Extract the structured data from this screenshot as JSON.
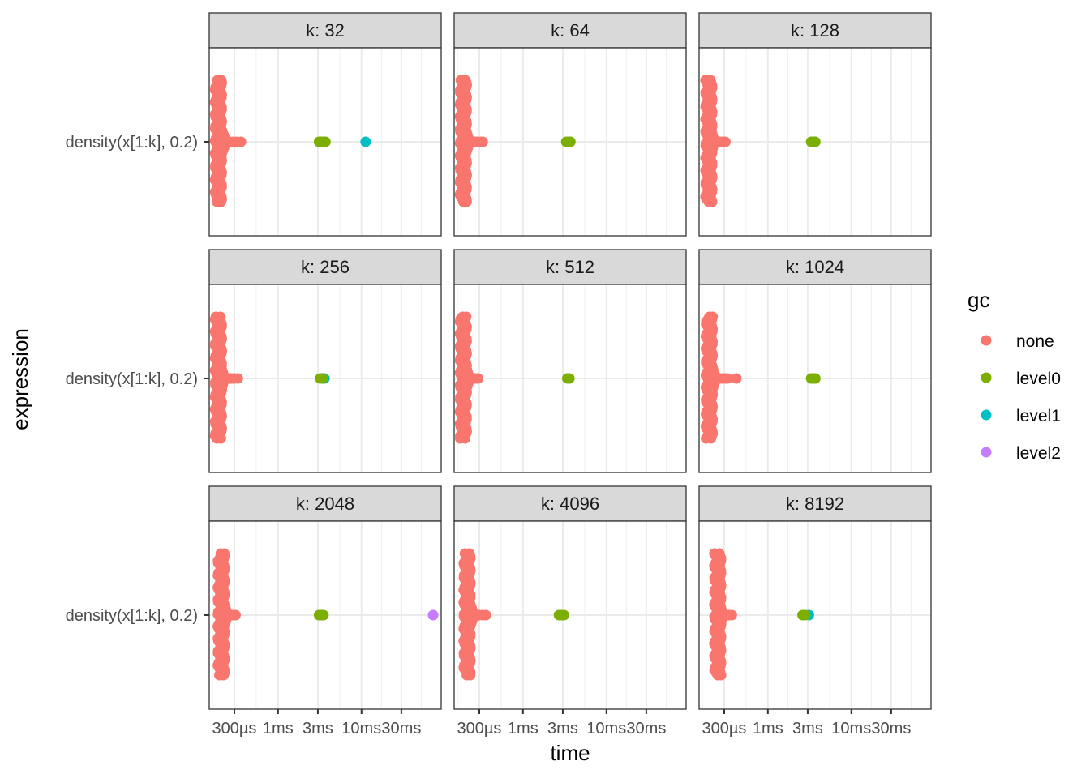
{
  "chart_data": {
    "type": "scatter",
    "subtype": "beeswarm-faceted",
    "xlabel": "time",
    "ylabel": "expression",
    "x_scale": "log10",
    "x_unit": "seconds",
    "xlim": [
      0.00015,
      0.09
    ],
    "x_ticks": [
      {
        "value": 0.0003,
        "label": "300µs"
      },
      {
        "value": 0.001,
        "label": "1ms"
      },
      {
        "value": 0.003,
        "label": "3ms"
      },
      {
        "value": 0.01,
        "label": "10ms"
      },
      {
        "value": 0.03,
        "label": "30ms"
      }
    ],
    "y_categories": [
      "density(x[1:k], 0.2)"
    ],
    "grid": true,
    "legend": {
      "title": "gc",
      "position": "right",
      "entries": [
        {
          "name": "none",
          "color": "#F8766D"
        },
        {
          "name": "level0",
          "color": "#7CAE00"
        },
        {
          "name": "level1",
          "color": "#00BFC4"
        },
        {
          "name": "level2",
          "color": "#C77CFF"
        }
      ]
    },
    "facets": [
      {
        "label": "k: 32",
        "none": {
          "core": 0.000185,
          "core_spread": 1.0,
          "shoulder": 0.00024,
          "tail": [
            0.00026,
            0.00029,
            0.00032,
            0.00036
          ]
        },
        "gc_points": [
          {
            "gc": "level0",
            "values": [
              0.0031,
              0.0033,
              0.0035,
              0.0037
            ]
          },
          {
            "gc": "level1",
            "values": [
              0.0112
            ]
          }
        ]
      },
      {
        "label": "k: 64",
        "none": {
          "core": 0.000185,
          "core_spread": 1.0,
          "shoulder": 0.00023,
          "tail": [
            0.00026,
            0.00028,
            0.00031,
            0.00033
          ]
        },
        "gc_points": [
          {
            "gc": "level0",
            "values": [
              0.0033,
              0.0035,
              0.0037
            ]
          }
        ]
      },
      {
        "label": "k: 128",
        "none": {
          "core": 0.000188,
          "core_spread": 1.0,
          "shoulder": 0.00023,
          "tail": [
            0.00025,
            0.00027,
            0.00029,
            0.00031
          ]
        },
        "gc_points": [
          {
            "gc": "level0",
            "values": [
              0.0033,
              0.0035,
              0.0037
            ]
          }
        ]
      },
      {
        "label": "k: 256",
        "none": {
          "core": 0.000185,
          "core_spread": 1.0,
          "shoulder": 0.00023,
          "tail": [
            0.00026,
            0.00028,
            0.0003,
            0.00033
          ]
        },
        "gc_points": [
          {
            "gc": "level1",
            "values": [
              0.0036
            ]
          },
          {
            "gc": "level0",
            "values": [
              0.0032,
              0.0034
            ]
          }
        ]
      },
      {
        "label": "k: 512",
        "none": {
          "core": 0.000185,
          "core_spread": 1.0,
          "shoulder": 0.00023,
          "tail": [
            0.00025,
            0.00027,
            0.00029
          ]
        },
        "gc_points": [
          {
            "gc": "level0",
            "values": [
              0.0034,
              0.0036
            ]
          }
        ]
      },
      {
        "label": "k: 1024",
        "none": {
          "core": 0.00019,
          "core_spread": 1.0,
          "shoulder": 0.00024,
          "tail": [
            0.00027,
            0.00029,
            0.00031,
            0.00033,
            0.00042
          ]
        },
        "gc_points": [
          {
            "gc": "level0",
            "values": [
              0.0033,
              0.0035,
              0.0037
            ]
          }
        ]
      },
      {
        "label": "k: 2048",
        "none": {
          "core": 0.0002,
          "core_spread": 1.0,
          "shoulder": 0.00025,
          "tail": [
            0.00027,
            0.00029,
            0.00031
          ]
        },
        "gc_points": [
          {
            "gc": "level1",
            "values": [
              0.0034
            ]
          },
          {
            "gc": "level0",
            "values": [
              0.0031,
              0.0033,
              0.0035
            ]
          },
          {
            "gc": "level2",
            "values": [
              0.072
            ]
          }
        ]
      },
      {
        "label": "k: 4096",
        "none": {
          "core": 0.000205,
          "core_spread": 1.0,
          "shoulder": 0.00026,
          "tail": [
            0.00028,
            0.0003,
            0.00033,
            0.00036
          ]
        },
        "gc_points": [
          {
            "gc": "level0",
            "values": [
              0.0027,
              0.0029,
              0.0031
            ]
          }
        ]
      },
      {
        "label": "k: 8192",
        "none": {
          "core": 0.00024,
          "core_spread": 1.0,
          "shoulder": 0.00029,
          "tail": [
            0.00031,
            0.00034,
            0.00037
          ]
        },
        "gc_points": [
          {
            "gc": "level1",
            "values": [
              0.0031
            ]
          },
          {
            "gc": "level0",
            "values": [
              0.0026,
              0.0028
            ]
          }
        ]
      }
    ]
  }
}
